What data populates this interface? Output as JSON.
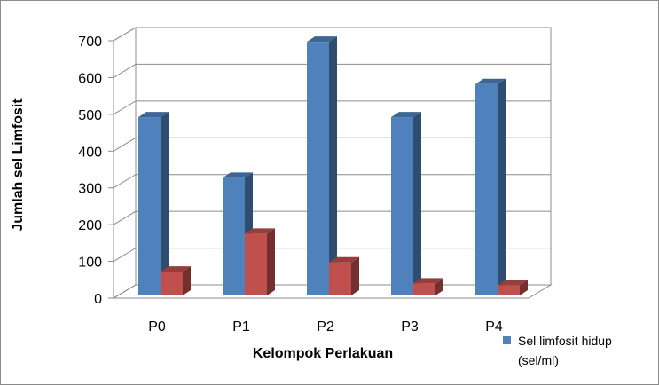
{
  "chart_data": {
    "type": "bar",
    "title": "",
    "xlabel": "Kelompok Perlakuan",
    "ylabel": "Jumlah sel Limfosit",
    "categories": [
      "P0",
      "P1",
      "P2",
      "P3",
      "P4"
    ],
    "ylim": [
      0,
      700
    ],
    "yticks": [
      "0",
      "100",
      "200",
      "300",
      "400",
      "500",
      "600",
      "700"
    ],
    "grid": true,
    "legend_position": "bottom-right",
    "series": [
      {
        "name": "Sel limfosit hidup (sel/ml)",
        "values": [
          485,
          320,
          690,
          485,
          575
        ],
        "color": "#4f81bd"
      },
      {
        "values": [
          65,
          168,
          90,
          33,
          28
        ],
        "color": "#c0504d"
      }
    ]
  },
  "legend": {
    "line1": "Sel limfosit hidup",
    "line2": "(sel/ml)"
  }
}
